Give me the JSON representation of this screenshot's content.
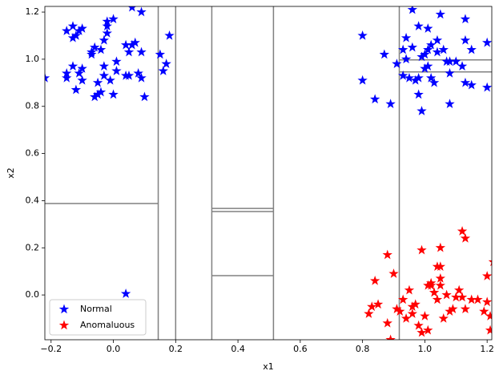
{
  "chart_data": {
    "type": "scatter",
    "xlabel": "x1",
    "ylabel": "x2",
    "xlim": [
      -0.22,
      1.215
    ],
    "ylim": [
      -0.19,
      1.224
    ],
    "xticks": [
      {
        "value": -0.2,
        "label": "−0.2"
      },
      {
        "value": 0,
        "label": "0.0"
      },
      0.2,
      0.4,
      0.6,
      0.8,
      {
        "value": 1,
        "label": "1.0"
      },
      1.2
    ],
    "yticks": [
      {
        "value": 0,
        "label": "0.0"
      },
      0.2,
      0.4,
      0.6,
      0.8,
      {
        "value": 1,
        "label": "1.0"
      },
      1.2
    ],
    "legend": "lower left",
    "split_color": "#808080",
    "vsplits": [
      0.144,
      0.2,
      0.316,
      0.514,
      0.918
    ],
    "hsplits": [
      {
        "y": 0.388,
        "x": [
          -0.22,
          0.144
        ]
      },
      {
        "y": 0.367,
        "x": [
          0.316,
          0.514
        ]
      },
      {
        "y": 0.354,
        "x": [
          0.316,
          0.514
        ]
      },
      {
        "y": 0.082,
        "x": [
          0.316,
          0.514
        ]
      },
      {
        "y": 0.997,
        "x": [
          0.918,
          1.215
        ]
      },
      {
        "y": 0.946,
        "x": [
          0.918,
          1.215
        ]
      }
    ],
    "series": [
      {
        "name": "Normal",
        "color": "#0000ff",
        "x": [
          -0.22,
          0.04,
          -0.15,
          -0.13,
          -0.12,
          -0.11,
          -0.1,
          -0.13,
          -0.02,
          -0.02,
          0.0,
          0.06,
          0.09,
          -0.02,
          0.18,
          0.07,
          0.06,
          0.04,
          -0.06,
          -0.07,
          -0.04,
          -0.03,
          0.05,
          0.09,
          0.01,
          -0.07,
          -0.03,
          -0.15,
          -0.15,
          -0.13,
          -0.1,
          -0.11,
          -0.1,
          -0.12,
          -0.05,
          -0.01,
          0.01,
          0.04,
          0.05,
          0.08,
          0.09,
          -0.03,
          -0.05,
          -0.06,
          -0.04,
          0.0,
          0.1,
          0.15,
          0.17,
          0.16,
          0.8,
          0.8,
          0.84,
          0.87,
          0.89,
          0.91,
          0.93,
          0.94,
          0.93,
          0.95,
          0.96,
          0.97,
          0.98,
          0.98,
          0.99,
          0.99,
          1.0,
          1.01,
          1.01,
          1.01,
          1.02,
          1.02,
          1.03,
          1.04,
          1.04,
          1.05,
          1.06,
          1.07,
          1.08,
          1.08,
          1.08,
          1.1,
          1.12,
          1.13,
          1.13,
          1.13,
          1.15,
          1.15,
          1.2,
          1.2,
          0.98,
          1.0,
          0.94,
          0.96
        ],
        "y": [
          0.92,
          0.005,
          1.12,
          1.14,
          1.1,
          1.12,
          1.13,
          1.09,
          1.16,
          1.14,
          1.17,
          1.22,
          1.2,
          1.11,
          1.1,
          1.07,
          1.06,
          1.06,
          1.05,
          1.03,
          1.04,
          1.08,
          1.03,
          1.03,
          0.99,
          1.02,
          0.97,
          0.94,
          0.92,
          0.97,
          0.96,
          0.94,
          0.91,
          0.87,
          0.9,
          0.91,
          0.95,
          0.93,
          0.93,
          0.94,
          0.92,
          0.93,
          0.85,
          0.84,
          0.86,
          0.85,
          0.84,
          1.02,
          0.98,
          0.95,
          1.1,
          0.91,
          0.83,
          1.02,
          0.81,
          0.98,
          1.04,
          1.09,
          0.93,
          0.92,
          1.21,
          0.91,
          1.14,
          0.85,
          0.78,
          1.01,
          1.02,
          1.04,
          0.97,
          1.13,
          0.92,
          1.06,
          0.9,
          1.08,
          1.03,
          1.19,
          1.04,
          0.99,
          0.99,
          0.94,
          0.81,
          0.99,
          0.97,
          1.17,
          1.08,
          0.9,
          1.04,
          0.89,
          1.07,
          0.88,
          0.92,
          0.96,
          1.0,
          1.05
        ]
      },
      {
        "name": "Anomaluous",
        "color": "#ff0000",
        "x": [
          0.82,
          0.83,
          0.85,
          0.84,
          0.88,
          0.88,
          0.89,
          0.9,
          0.91,
          0.92,
          0.93,
          0.94,
          0.95,
          0.96,
          0.96,
          0.97,
          0.98,
          0.99,
          0.99,
          1.0,
          1.01,
          1.02,
          1.03,
          1.04,
          1.04,
          1.05,
          1.05,
          1.05,
          1.05,
          1.06,
          1.07,
          1.08,
          1.09,
          1.1,
          1.11,
          1.12,
          1.12,
          1.13,
          1.13,
          1.15,
          1.17,
          1.19,
          1.2,
          1.2,
          1.21,
          1.22,
          1.21,
          1.02,
          1.01
        ],
        "y": [
          -0.08,
          -0.05,
          -0.04,
          0.06,
          0.17,
          -0.12,
          -0.19,
          0.09,
          -0.06,
          -0.07,
          -0.02,
          -0.1,
          0.02,
          -0.08,
          -0.05,
          -0.04,
          -0.13,
          0.19,
          -0.16,
          -0.09,
          0.04,
          0.05,
          0.01,
          0.12,
          -0.02,
          0.2,
          0.12,
          0.07,
          0.04,
          -0.1,
          0.0,
          -0.07,
          -0.06,
          -0.01,
          0.02,
          -0.01,
          0.27,
          0.24,
          -0.06,
          -0.02,
          -0.02,
          -0.07,
          0.08,
          -0.03,
          -0.09,
          0.14,
          -0.15,
          0.04,
          -0.15
        ]
      }
    ]
  }
}
